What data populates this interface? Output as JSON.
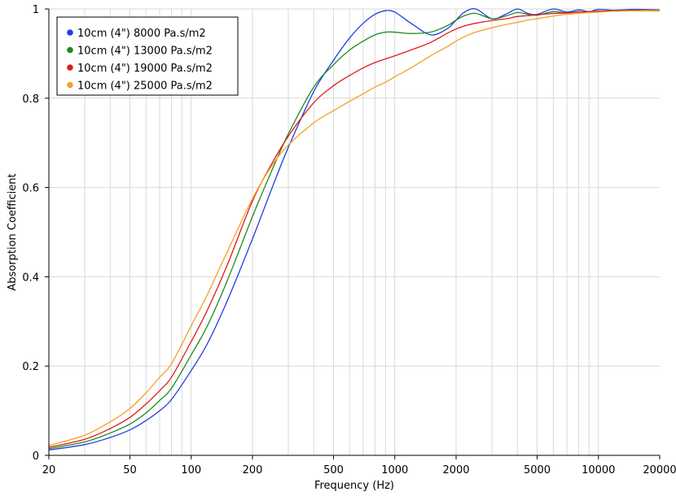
{
  "chart_data": {
    "type": "line",
    "xlabel": "Frequency (Hz)",
    "ylabel": "Absorption Coefficient",
    "xscale": "log",
    "xlim": [
      20,
      20000
    ],
    "ylim": [
      0,
      1
    ],
    "grid": true,
    "legend_position": "top-left",
    "x_ticks": [
      20,
      50,
      100,
      200,
      500,
      1000,
      2000,
      5000,
      10000,
      20000
    ],
    "x_tick_labels": [
      "20",
      "50",
      "100",
      "200",
      "500",
      "1000",
      "2000",
      "5000",
      "10000",
      "20000"
    ],
    "y_ticks": [
      0,
      0.2,
      0.4,
      0.6,
      0.8,
      1
    ],
    "y_tick_labels": [
      "0",
      "0.2",
      "0.4",
      "0.6",
      "0.8",
      "1"
    ],
    "series": [
      {
        "name": "10cm (4\") 8000 Pa.s/m2",
        "color": "#1f3fe0",
        "x": [
          20,
          30,
          40,
          50,
          60,
          70,
          80,
          100,
          120,
          150,
          200,
          250,
          300,
          400,
          500,
          600,
          700,
          800,
          900,
          1000,
          1200,
          1500,
          1800,
          2000,
          2200,
          2500,
          3000,
          3500,
          4000,
          4500,
          5000,
          6000,
          7000,
          8000,
          9000,
          10000,
          12000,
          15000,
          20000
        ],
        "y": [
          0.012,
          0.024,
          0.04,
          0.057,
          0.078,
          0.1,
          0.125,
          0.19,
          0.25,
          0.345,
          0.485,
          0.6,
          0.69,
          0.815,
          0.885,
          0.935,
          0.968,
          0.988,
          0.996,
          0.993,
          0.968,
          0.942,
          0.955,
          0.975,
          0.993,
          1.0,
          0.978,
          0.988,
          1.0,
          0.99,
          0.988,
          1.0,
          0.993,
          0.998,
          0.994,
          0.999,
          0.997,
          0.999,
          0.998
        ]
      },
      {
        "name": "10cm (4\") 13000 Pa.s/m2",
        "color": "#1e8a1e",
        "x": [
          20,
          30,
          40,
          50,
          60,
          70,
          80,
          100,
          120,
          150,
          200,
          250,
          300,
          400,
          500,
          600,
          700,
          800,
          900,
          1000,
          1200,
          1500,
          1800,
          2000,
          2200,
          2500,
          3000,
          3500,
          4000,
          4500,
          5000,
          6000,
          7000,
          8000,
          9000,
          10000,
          12000,
          15000,
          20000
        ],
        "y": [
          0.015,
          0.03,
          0.05,
          0.07,
          0.095,
          0.123,
          0.15,
          0.225,
          0.29,
          0.39,
          0.535,
          0.64,
          0.72,
          0.825,
          0.875,
          0.908,
          0.928,
          0.942,
          0.948,
          0.948,
          0.945,
          0.948,
          0.962,
          0.975,
          0.985,
          0.99,
          0.978,
          0.984,
          0.992,
          0.988,
          0.986,
          0.994,
          0.991,
          0.994,
          0.992,
          0.995,
          0.995,
          0.996,
          0.996
        ]
      },
      {
        "name": "10cm (4\") 19000 Pa.s/m2",
        "color": "#e01b1b",
        "x": [
          20,
          30,
          40,
          50,
          60,
          70,
          80,
          100,
          120,
          150,
          200,
          250,
          300,
          400,
          500,
          600,
          700,
          800,
          900,
          1000,
          1200,
          1500,
          1800,
          2000,
          2200,
          2500,
          3000,
          3500,
          4000,
          4500,
          5000,
          6000,
          7000,
          8000,
          9000,
          10000,
          12000,
          15000,
          20000
        ],
        "y": [
          0.018,
          0.036,
          0.06,
          0.085,
          0.115,
          0.145,
          0.175,
          0.255,
          0.325,
          0.425,
          0.57,
          0.655,
          0.715,
          0.79,
          0.828,
          0.851,
          0.868,
          0.88,
          0.888,
          0.895,
          0.908,
          0.925,
          0.945,
          0.955,
          0.962,
          0.968,
          0.974,
          0.978,
          0.983,
          0.985,
          0.987,
          0.99,
          0.991,
          0.993,
          0.994,
          0.995,
          0.996,
          0.997,
          0.998
        ]
      },
      {
        "name": "10cm (4\") 25000 Pa.s/m2",
        "color": "#f5a025",
        "x": [
          20,
          30,
          40,
          50,
          60,
          70,
          80,
          100,
          120,
          150,
          200,
          250,
          300,
          400,
          500,
          600,
          700,
          800,
          900,
          1000,
          1200,
          1500,
          1800,
          2000,
          2200,
          2500,
          3000,
          3500,
          4000,
          4500,
          5000,
          6000,
          7000,
          8000,
          9000,
          10000,
          12000,
          15000,
          20000
        ],
        "y": [
          0.022,
          0.045,
          0.075,
          0.105,
          0.14,
          0.175,
          0.205,
          0.29,
          0.36,
          0.455,
          0.575,
          0.65,
          0.695,
          0.745,
          0.772,
          0.793,
          0.81,
          0.825,
          0.836,
          0.848,
          0.868,
          0.895,
          0.915,
          0.928,
          0.938,
          0.948,
          0.958,
          0.965,
          0.97,
          0.975,
          0.978,
          0.984,
          0.988,
          0.99,
          0.992,
          0.993,
          0.995,
          0.996,
          0.997
        ]
      }
    ]
  }
}
